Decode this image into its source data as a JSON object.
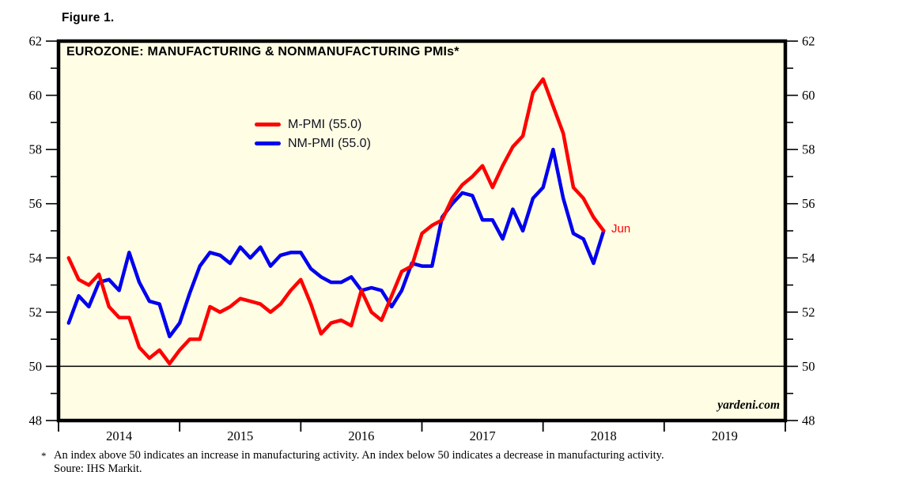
{
  "figure_label": "Figure 1.",
  "chart": {
    "title": "EUROZONE: MANUFACTURING & NONMANUFACTURING PMIs*",
    "watermark": "yardeni.com",
    "last_point_label": "Jun",
    "plot_bg_color": "#fffee5",
    "frame_color": "#000000"
  },
  "footnote": {
    "marker": "*",
    "line1": "An index above 50 indicates an increase in manufacturing activity. An index below 50 indicates a decrease in manufacturing activity.",
    "line2": "Soure: IHS Markit."
  },
  "chart_data": {
    "type": "line",
    "title": "EUROZONE: MANUFACTURING & NONMANUFACTURING PMIs*",
    "x_unit": "month",
    "x_start": "2014-01",
    "x_end": "2018-06",
    "xlim_years": [
      2014,
      2020
    ],
    "ylim": [
      48,
      62
    ],
    "yticks_labeled": [
      48,
      50,
      52,
      54,
      56,
      58,
      60,
      62
    ],
    "ytick_minor_step": 1,
    "year_tick_boundaries": [
      2014,
      2015,
      2016,
      2017,
      2018,
      2019,
      2020
    ],
    "year_labels": [
      "2014",
      "2015",
      "2016",
      "2017",
      "2018",
      "2019"
    ],
    "reference_line_y": 50,
    "grid": false,
    "legend_position": "inside-upper-left",
    "series": [
      {
        "name": "M-PMI (55.0)",
        "color": "#ff0000",
        "values": [
          54.0,
          53.2,
          53.0,
          53.4,
          52.2,
          51.8,
          51.8,
          50.7,
          50.3,
          50.6,
          50.1,
          50.6,
          51.0,
          51.0,
          52.2,
          52.0,
          52.2,
          52.5,
          52.4,
          52.3,
          52.0,
          52.3,
          52.8,
          53.2,
          52.3,
          51.2,
          51.6,
          51.7,
          51.5,
          52.8,
          52.0,
          51.7,
          52.6,
          53.5,
          53.7,
          54.9,
          55.2,
          55.4,
          56.2,
          56.7,
          57.0,
          57.4,
          56.6,
          57.4,
          58.1,
          58.5,
          60.1,
          60.6,
          59.6,
          58.6,
          56.6,
          56.2,
          55.5,
          55.0
        ]
      },
      {
        "name": "NM-PMI (55.0)",
        "color": "#0000ee",
        "values": [
          51.6,
          52.6,
          52.2,
          53.1,
          53.2,
          52.8,
          54.2,
          53.1,
          52.4,
          52.3,
          51.1,
          51.6,
          52.7,
          53.7,
          54.2,
          54.1,
          53.8,
          54.4,
          54.0,
          54.4,
          53.7,
          54.1,
          54.2,
          54.2,
          53.6,
          53.3,
          53.1,
          53.1,
          53.3,
          52.8,
          52.9,
          52.8,
          52.2,
          52.8,
          53.8,
          53.7,
          53.7,
          55.5,
          56.0,
          56.4,
          56.3,
          55.4,
          55.4,
          54.7,
          55.8,
          55.0,
          56.2,
          56.6,
          58.0,
          56.2,
          54.9,
          54.7,
          53.8,
          55.0
        ]
      }
    ]
  }
}
